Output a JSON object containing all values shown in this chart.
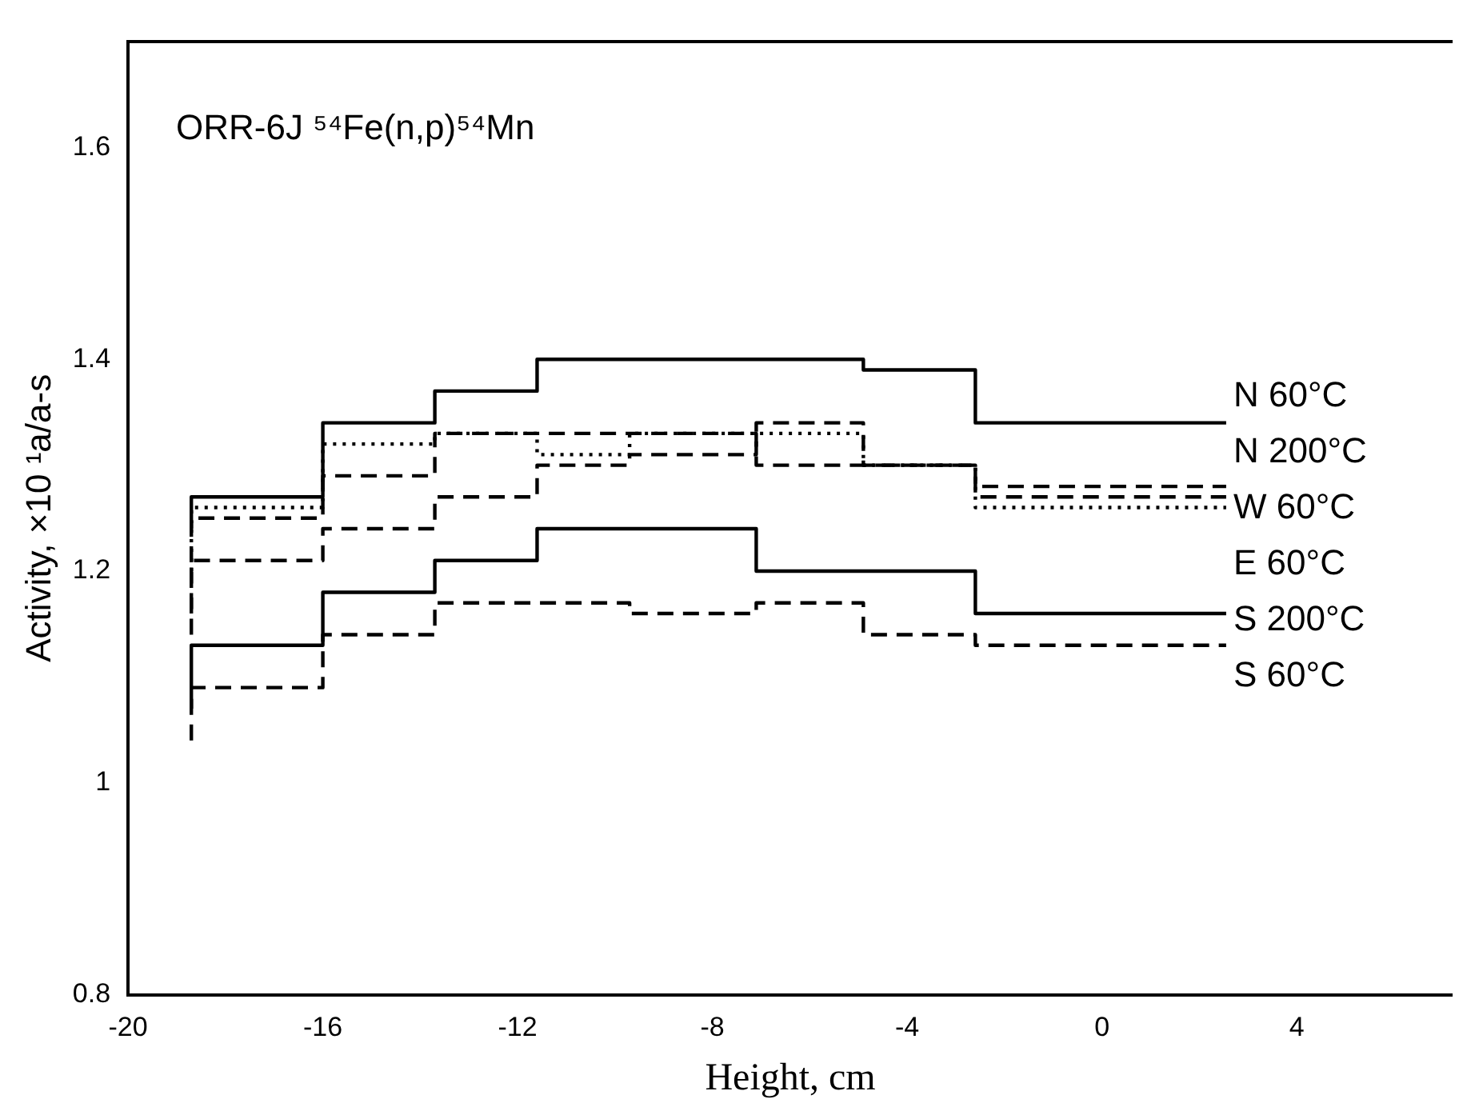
{
  "chart_data": {
    "type": "step",
    "xlabel": "Height, cm",
    "ylabel": "Activity, ×10 ¹a/a-s",
    "xlim": [
      -20,
      7.2
    ],
    "ylim": [
      0.8,
      1.7
    ],
    "xticks": [
      -20,
      -16,
      -12,
      -8,
      -4,
      0,
      4
    ],
    "yticks": [
      0.8,
      1,
      1.2,
      1.4,
      1.6
    ],
    "grid": false,
    "legend": false,
    "x": [
      -18.7,
      -16,
      -13.7,
      -11.6,
      -9.7,
      -7.1,
      -4.9,
      -2.6,
      -0.35,
      2.55
    ],
    "series": [
      {
        "color": "#000000",
        "line_style": "solid",
        "values": [
          1.24,
          1.27,
          1.34,
          1.37,
          1.4,
          1.4,
          1.4,
          1.39,
          1.34,
          1.34
        ]
      },
      {
        "color": "#000000",
        "line_style": "dotted",
        "values": [
          1.2,
          1.26,
          1.32,
          1.33,
          1.31,
          1.33,
          1.33,
          1.3,
          1.26,
          1.26
        ]
      },
      {
        "color": "#000000",
        "line_style": "dashed",
        "values": [
          1.16,
          1.25,
          1.29,
          1.33,
          1.33,
          1.33,
          1.3,
          1.3,
          1.28,
          1.28
        ]
      },
      {
        "color": "#000000",
        "line_style": "dashed",
        "values": [
          1.14,
          1.21,
          1.24,
          1.27,
          1.3,
          1.31,
          1.34,
          1.3,
          1.27,
          1.27
        ]
      },
      {
        "color": "#000000",
        "line_style": "solid",
        "values": [
          1.07,
          1.13,
          1.18,
          1.21,
          1.24,
          1.24,
          1.2,
          1.2,
          1.16,
          1.16
        ]
      },
      {
        "color": "#000000",
        "line_style": "dashed",
        "values": [
          1.04,
          1.09,
          1.14,
          1.17,
          1.17,
          1.16,
          1.17,
          1.14,
          1.13,
          1.13
        ]
      }
    ],
    "annotations": [
      "ORR-6J ⁵⁴Fe(n,p)⁵⁴Mn",
      "N 60°C",
      "N 200°C",
      "W 60°C",
      "E 60°C",
      "S 200°C",
      "S 60°C"
    ]
  }
}
